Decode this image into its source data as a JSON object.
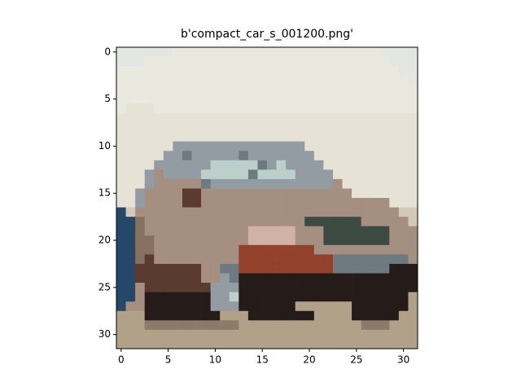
{
  "chart_data": {
    "type": "image",
    "title": "b'compact_car_s_001200.png'",
    "xlim": [
      -0.5,
      31.5
    ],
    "ylim": [
      31.5,
      -0.5
    ],
    "xticks": [
      0,
      5,
      10,
      15,
      20,
      25,
      30
    ],
    "yticks": [
      0,
      5,
      10,
      15,
      20,
      25,
      30
    ],
    "palette": {
      "a": "#e9e8df",
      "b": "#e4e6e4",
      "c": "#e6e3d6",
      "d": "#939ca2",
      "e": "#bcd0ca",
      "f": "#6f7a80",
      "g": "#86705f",
      "h": "#a58f80",
      "i": "#5b3b2f",
      "j": "#251b18",
      "k": "#24476a",
      "l": "#93412a",
      "m": "#d2b2a4",
      "n": "#b2a189",
      "o": "#8c7b68",
      "p": "#3d4a42",
      "q": "#d4c8b8"
    },
    "pixels": [
      "bbbbbbaaaaaaaaaaaaaaaaaaaaaabbbb",
      "bbbaaaaaaaaaaaaaaaaaaaaaaaaaabbb",
      "aaaaaaaaaaaaaaaaaaaaaaaaaaaaaabb",
      "aaaaaaaaaaaaaaaaaaaaaaaaaaaaaaab",
      "aaaaaaaaaaaaaaaaaaaaaaaaaaaaaaaa",
      "aaaaaaaaaaaaaaaaaaaaaaaaaaaaaaaa",
      "acccaaaaaaaaaaaaaaaaaaaaaaaaaaaa",
      "cccccccccccccccccccccccccccccccc",
      "cccccccccccccccccccccccccccccccc",
      "cccccccccccccccccccccccccccccccc",
      "ccccccddddddddddddddcccccccccccc",
      "cccccddfdddddfdddddddccccccccccc",
      "ccccddddddeeeeefdeddddcccccccccc",
      "cccdhddddeeeeefeeeeddddccccccccc",
      "cccdhhhhhfdddddddddddddhcccccccc",
      "ccdhhhhiihhhhhhhhhhhhhhhhccccccc",
      "ccdhhhhiihhhhhhhhhhhhhhhhhhhhccc",
      "kqhhhhhhhhhhhhhhhhhhhhhhhhhhhhqq",
      "kkghhhhhhhhhhhhhhhhhpppppphhhhhq",
      "kkghhhhhhhhhhhmmmmmhhhppppppphhh",
      "kkgghhhhhhhhhhmmmmmhhhppppppphhh",
      "kkgghhhhhhhhhllllllllhhhhhhhhhhh",
      "kkgihhhhhhhhhllllllllllffffffffh",
      "kkiiiiiiihhffllllllllllffffffjjj",
      "kkiiiiiiihhdfjjjjjjjjjjjjjjjjjjj",
      "kkhiiiiiiidddjjjjjjjjjjjjjjjjjjj",
      "kkhjjjjjjjddejjjjjjjjjjjjjjjjjjn",
      "khhjjjjjjjdddjjjjjjnnnnnnjjjjjjn",
      "nnnjjjjjjjjnnnjjjjjjjnnnnjjjjjnn",
      "nnnoooooooooonnnnnnnnnnnnnooonnn",
      "nnnnnnnnnnnnnnnnnnnnnnnnnnnnnnnn",
      "nnnnnnnnnnnnnnnnnnnnnnnnnnnnnnnn"
    ]
  }
}
